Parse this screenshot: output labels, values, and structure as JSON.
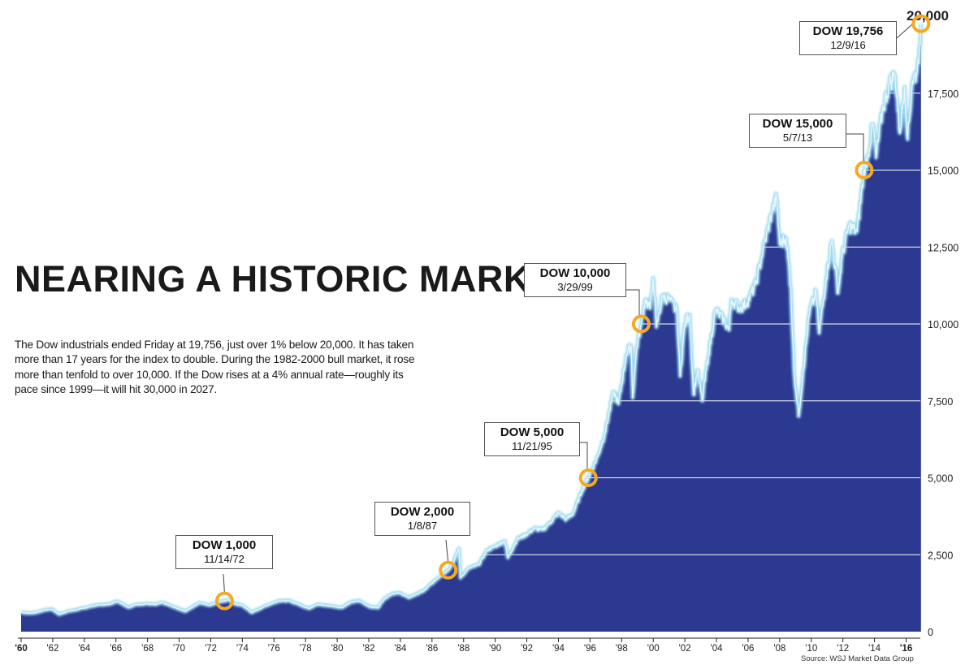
{
  "chart_data": {
    "type": "area",
    "title": "NEARING A HISTORIC MARK",
    "description_text": "The Dow industrials ended Friday at 19,756, just over 1% below 20,000. It has taken more than 17 years for the index to double. During the 1982-2000 bull market, it rose more than tenfold to over 10,000. If the Dow rises at a 4% annual rate—roughly its pace since 1999—it will hit 30,000 in 2027.",
    "source": "Source: WSJ Market Data Group",
    "ylim": [
      0,
      20000
    ],
    "xlim": [
      1960,
      2016.9
    ],
    "y_ticks": [
      {
        "value": 0,
        "label": "0"
      },
      {
        "value": 2500,
        "label": "2,500"
      },
      {
        "value": 5000,
        "label": "5,000"
      },
      {
        "value": 7500,
        "label": "7,500"
      },
      {
        "value": 10000,
        "label": "10,000"
      },
      {
        "value": 12500,
        "label": "12,500"
      },
      {
        "value": 15000,
        "label": "15,000"
      },
      {
        "value": 17500,
        "label": "17,500"
      },
      {
        "value": 20000,
        "label": "20,000"
      }
    ],
    "x_ticks": [
      {
        "value": 1960,
        "label": "'60"
      },
      {
        "value": 1962,
        "label": "'62"
      },
      {
        "value": 1964,
        "label": "'64"
      },
      {
        "value": 1966,
        "label": "'66"
      },
      {
        "value": 1968,
        "label": "'68"
      },
      {
        "value": 1970,
        "label": "'70"
      },
      {
        "value": 1972,
        "label": "'72"
      },
      {
        "value": 1974,
        "label": "'74"
      },
      {
        "value": 1976,
        "label": "'76"
      },
      {
        "value": 1978,
        "label": "'78"
      },
      {
        "value": 1980,
        "label": "'80"
      },
      {
        "value": 1982,
        "label": "'82"
      },
      {
        "value": 1984,
        "label": "'84"
      },
      {
        "value": 1986,
        "label": "'86"
      },
      {
        "value": 1988,
        "label": "'88"
      },
      {
        "value": 1990,
        "label": "'90"
      },
      {
        "value": 1992,
        "label": "'92"
      },
      {
        "value": 1994,
        "label": "'94"
      },
      {
        "value": 1996,
        "label": "'96"
      },
      {
        "value": 1998,
        "label": "'98"
      },
      {
        "value": 2000,
        "label": "'00"
      },
      {
        "value": 2002,
        "label": "'02"
      },
      {
        "value": 2004,
        "label": "'04"
      },
      {
        "value": 2006,
        "label": "'06"
      },
      {
        "value": 2008,
        "label": "'08"
      },
      {
        "value": 2010,
        "label": "'10"
      },
      {
        "value": 2012,
        "label": "'12"
      },
      {
        "value": 2014,
        "label": "'14"
      },
      {
        "value": 2016,
        "label": "'16"
      }
    ],
    "series": [
      {
        "points": [
          [
            1960.0,
            620
          ],
          [
            1960.5,
            600
          ],
          [
            1960.9,
            615
          ],
          [
            1961.5,
            700
          ],
          [
            1961.95,
            730
          ],
          [
            1962.4,
            560
          ],
          [
            1962.9,
            650
          ],
          [
            1963.5,
            710
          ],
          [
            1963.95,
            760
          ],
          [
            1964.5,
            830
          ],
          [
            1964.95,
            870
          ],
          [
            1965.5,
            880
          ],
          [
            1966.1,
            990
          ],
          [
            1966.8,
            790
          ],
          [
            1967.3,
            880
          ],
          [
            1967.95,
            900
          ],
          [
            1968.5,
            880
          ],
          [
            1968.95,
            940
          ],
          [
            1969.5,
            830
          ],
          [
            1970.4,
            660
          ],
          [
            1970.95,
            830
          ],
          [
            1971.3,
            940
          ],
          [
            1971.9,
            860
          ],
          [
            1972.5,
            950
          ],
          [
            1972.87,
            1000
          ],
          [
            1973.1,
            1040
          ],
          [
            1973.5,
            900
          ],
          [
            1974.0,
            850
          ],
          [
            1974.6,
            620
          ],
          [
            1975.5,
            840
          ],
          [
            1976.3,
            1000
          ],
          [
            1976.95,
            1000
          ],
          [
            1977.5,
            900
          ],
          [
            1978.2,
            750
          ],
          [
            1978.7,
            880
          ],
          [
            1979.5,
            840
          ],
          [
            1980.3,
            780
          ],
          [
            1980.9,
            960
          ],
          [
            1981.4,
            1000
          ],
          [
            1982.1,
            800
          ],
          [
            1982.6,
            780
          ],
          [
            1982.95,
            1050
          ],
          [
            1983.5,
            1240
          ],
          [
            1984.0,
            1250
          ],
          [
            1984.5,
            1100
          ],
          [
            1984.95,
            1200
          ],
          [
            1985.5,
            1330
          ],
          [
            1985.95,
            1550
          ],
          [
            1986.5,
            1800
          ],
          [
            1987.02,
            2000
          ],
          [
            1987.4,
            2300
          ],
          [
            1987.7,
            2700
          ],
          [
            1987.8,
            1750
          ],
          [
            1988.3,
            2050
          ],
          [
            1988.95,
            2170
          ],
          [
            1989.5,
            2650
          ],
          [
            1989.95,
            2750
          ],
          [
            1990.6,
            2950
          ],
          [
            1990.8,
            2400
          ],
          [
            1991.4,
            3000
          ],
          [
            1991.95,
            3150
          ],
          [
            1992.5,
            3350
          ],
          [
            1993.0,
            3300
          ],
          [
            1993.5,
            3550
          ],
          [
            1994.0,
            3850
          ],
          [
            1994.5,
            3650
          ],
          [
            1994.95,
            3850
          ],
          [
            1995.5,
            4600
          ],
          [
            1995.89,
            5000
          ],
          [
            1996.5,
            5700
          ],
          [
            1996.95,
            6450
          ],
          [
            1997.5,
            7800
          ],
          [
            1997.8,
            7400
          ],
          [
            1998.3,
            9000
          ],
          [
            1998.6,
            9300
          ],
          [
            1998.7,
            7600
          ],
          [
            1998.95,
            9200
          ],
          [
            1999.24,
            10000
          ],
          [
            1999.5,
            10800
          ],
          [
            1999.8,
            10500
          ],
          [
            2000.0,
            11500
          ],
          [
            2000.2,
            9900
          ],
          [
            2000.6,
            10900
          ],
          [
            2001.0,
            10800
          ],
          [
            2001.5,
            10400
          ],
          [
            2001.7,
            8300
          ],
          [
            2002.0,
            10000
          ],
          [
            2002.3,
            10300
          ],
          [
            2002.55,
            7700
          ],
          [
            2002.8,
            8500
          ],
          [
            2003.1,
            7500
          ],
          [
            2003.5,
            9000
          ],
          [
            2003.95,
            10450
          ],
          [
            2004.5,
            10100
          ],
          [
            2004.8,
            9800
          ],
          [
            2004.95,
            10800
          ],
          [
            2005.5,
            10500
          ],
          [
            2005.95,
            10700
          ],
          [
            2006.5,
            11300
          ],
          [
            2006.95,
            12400
          ],
          [
            2007.5,
            13600
          ],
          [
            2007.8,
            14100
          ],
          [
            2008.0,
            12600
          ],
          [
            2008.4,
            12800
          ],
          [
            2008.7,
            11200
          ],
          [
            2008.9,
            8500
          ],
          [
            2009.2,
            7000
          ],
          [
            2009.5,
            8500
          ],
          [
            2009.9,
            10400
          ],
          [
            2010.3,
            11000
          ],
          [
            2010.5,
            9700
          ],
          [
            2010.95,
            11500
          ],
          [
            2011.3,
            12700
          ],
          [
            2011.7,
            11000
          ],
          [
            2011.95,
            12200
          ],
          [
            2012.4,
            13200
          ],
          [
            2012.9,
            13000
          ],
          [
            2013.35,
            15000
          ],
          [
            2013.6,
            15500
          ],
          [
            2013.9,
            16500
          ],
          [
            2014.1,
            15400
          ],
          [
            2014.5,
            16900
          ],
          [
            2014.95,
            17800
          ],
          [
            2015.3,
            18100
          ],
          [
            2015.6,
            16200
          ],
          [
            2015.9,
            17700
          ],
          [
            2016.1,
            16000
          ],
          [
            2016.4,
            17900
          ],
          [
            2016.7,
            18200
          ],
          [
            2016.85,
            19000
          ],
          [
            2016.94,
            19756
          ]
        ]
      }
    ],
    "annotations": [
      {
        "label": "DOW 1,000",
        "date": "11/14/72",
        "x": 1972.87,
        "y": 1000
      },
      {
        "label": "DOW 2,000",
        "date": "1/8/87",
        "x": 1987.02,
        "y": 2000
      },
      {
        "label": "DOW 5,000",
        "date": "11/21/95",
        "x": 1995.89,
        "y": 5000
      },
      {
        "label": "DOW 10,000",
        "date": "3/29/99",
        "x": 1999.24,
        "y": 10000
      },
      {
        "label": "DOW 15,000",
        "date": "5/7/13",
        "x": 2013.35,
        "y": 15000
      },
      {
        "label": "DOW 19,756",
        "date": "12/9/16",
        "x": 2016.94,
        "y": 19756
      }
    ],
    "colors": {
      "area_fill": "#2b3990",
      "line_glow": "#9fd9ef",
      "line_core": "#e8f7fd",
      "marker_ring": "#f7a823",
      "gridline": "#ffffff"
    },
    "grid": "horizontal"
  }
}
